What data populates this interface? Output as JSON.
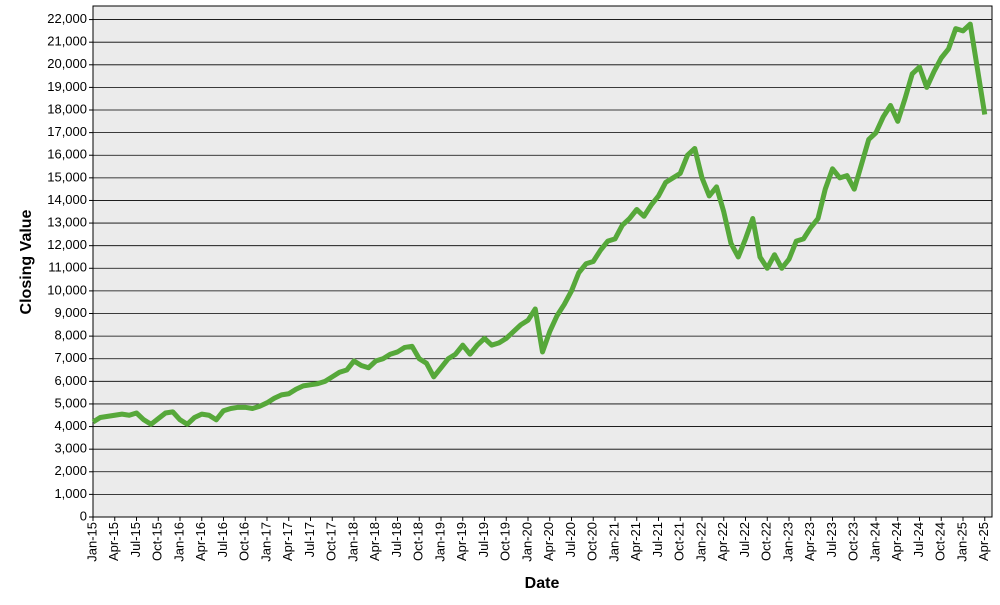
{
  "chart_data": {
    "type": "line",
    "x_label": "Date",
    "y_label": "Closing Value",
    "color": "#56a83a",
    "grid": true,
    "xlim": [
      "2015-01",
      "2025-05"
    ],
    "ylim": [
      0,
      22600
    ],
    "yticks": [
      0,
      {
        "value": 1000,
        "label": "1,000"
      },
      {
        "value": 2000,
        "label": "2,000"
      },
      {
        "value": 3000,
        "label": "3,000"
      },
      {
        "value": 4000,
        "label": "4,000"
      },
      {
        "value": 5000,
        "label": "5,000"
      },
      {
        "value": 6000,
        "label": "6,000"
      },
      {
        "value": 7000,
        "label": "7,000"
      },
      {
        "value": 8000,
        "label": "8,000"
      },
      {
        "value": 9000,
        "label": "9,000"
      },
      {
        "value": 10000,
        "label": "10,000"
      },
      {
        "value": 11000,
        "label": "11,000"
      },
      {
        "value": 12000,
        "label": "12,000"
      },
      {
        "value": 13000,
        "label": "13,000"
      },
      {
        "value": 14000,
        "label": "14,000"
      },
      {
        "value": 15000,
        "label": "15,000"
      },
      {
        "value": 16000,
        "label": "16,000"
      },
      {
        "value": 17000,
        "label": "17,000"
      },
      {
        "value": 18000,
        "label": "18,000"
      },
      {
        "value": 19000,
        "label": "19,000"
      },
      {
        "value": 20000,
        "label": "20,000"
      },
      {
        "value": 21000,
        "label": "21,000"
      },
      {
        "value": 22000,
        "label": "22,000"
      }
    ],
    "xticks": [
      {
        "value": "2015-01",
        "label": "Jan-15"
      },
      {
        "value": "2015-04",
        "label": "Apr-15"
      },
      {
        "value": "2015-07",
        "label": "Jul-15"
      },
      {
        "value": "2015-10",
        "label": "Oct-15"
      },
      {
        "value": "2016-01",
        "label": "Jan-16"
      },
      {
        "value": "2016-04",
        "label": "Apr-16"
      },
      {
        "value": "2016-07",
        "label": "Jul-16"
      },
      {
        "value": "2016-10",
        "label": "Oct-16"
      },
      {
        "value": "2017-01",
        "label": "Jan-17"
      },
      {
        "value": "2017-04",
        "label": "Apr-17"
      },
      {
        "value": "2017-07",
        "label": "Jul-17"
      },
      {
        "value": "2017-10",
        "label": "Oct-17"
      },
      {
        "value": "2018-01",
        "label": "Jan-18"
      },
      {
        "value": "2018-04",
        "label": "Apr-18"
      },
      {
        "value": "2018-07",
        "label": "Jul-18"
      },
      {
        "value": "2018-10",
        "label": "Oct-18"
      },
      {
        "value": "2019-01",
        "label": "Jan-19"
      },
      {
        "value": "2019-04",
        "label": "Apr-19"
      },
      {
        "value": "2019-07",
        "label": "Jul-19"
      },
      {
        "value": "2019-10",
        "label": "Oct-19"
      },
      {
        "value": "2020-01",
        "label": "Jan-20"
      },
      {
        "value": "2020-04",
        "label": "Apr-20"
      },
      {
        "value": "2020-07",
        "label": "Jul-20"
      },
      {
        "value": "2020-10",
        "label": "Oct-20"
      },
      {
        "value": "2021-01",
        "label": "Jan-21"
      },
      {
        "value": "2021-04",
        "label": "Apr-21"
      },
      {
        "value": "2021-07",
        "label": "Jul-21"
      },
      {
        "value": "2021-10",
        "label": "Oct-21"
      },
      {
        "value": "2022-01",
        "label": "Jan-22"
      },
      {
        "value": "2022-04",
        "label": "Apr-22"
      },
      {
        "value": "2022-07",
        "label": "Jul-22"
      },
      {
        "value": "2022-10",
        "label": "Oct-22"
      },
      {
        "value": "2023-01",
        "label": "Jan-23"
      },
      {
        "value": "2023-04",
        "label": "Apr-23"
      },
      {
        "value": "2023-07",
        "label": "Jul-23"
      },
      {
        "value": "2023-10",
        "label": "Oct-23"
      },
      {
        "value": "2024-01",
        "label": "Jan-24"
      },
      {
        "value": "2024-04",
        "label": "Apr-24"
      },
      {
        "value": "2024-07",
        "label": "Jul-24"
      },
      {
        "value": "2024-10",
        "label": "Oct-24"
      },
      {
        "value": "2025-01",
        "label": "Jan-25"
      },
      {
        "value": "2025-04",
        "label": "Apr-25"
      }
    ],
    "x": [
      "2015-01",
      "2015-02",
      "2015-03",
      "2015-04",
      "2015-05",
      "2015-06",
      "2015-07",
      "2015-08",
      "2015-09",
      "2015-10",
      "2015-11",
      "2015-12",
      "2016-01",
      "2016-02",
      "2016-03",
      "2016-04",
      "2016-05",
      "2016-06",
      "2016-07",
      "2016-08",
      "2016-09",
      "2016-10",
      "2016-11",
      "2016-12",
      "2017-01",
      "2017-02",
      "2017-03",
      "2017-04",
      "2017-05",
      "2017-06",
      "2017-07",
      "2017-08",
      "2017-09",
      "2017-10",
      "2017-11",
      "2017-12",
      "2018-01",
      "2018-02",
      "2018-03",
      "2018-04",
      "2018-05",
      "2018-06",
      "2018-07",
      "2018-08",
      "2018-09",
      "2018-10",
      "2018-11",
      "2018-12",
      "2019-01",
      "2019-02",
      "2019-03",
      "2019-04",
      "2019-05",
      "2019-06",
      "2019-07",
      "2019-08",
      "2019-09",
      "2019-10",
      "2019-11",
      "2019-12",
      "2020-01",
      "2020-02",
      "2020-03",
      "2020-04",
      "2020-05",
      "2020-06",
      "2020-07",
      "2020-08",
      "2020-09",
      "2020-10",
      "2020-11",
      "2020-12",
      "2021-01",
      "2021-02",
      "2021-03",
      "2021-04",
      "2021-05",
      "2021-06",
      "2021-07",
      "2021-08",
      "2021-09",
      "2021-10",
      "2021-11",
      "2021-12",
      "2022-01",
      "2022-02",
      "2022-03",
      "2022-04",
      "2022-05",
      "2022-06",
      "2022-07",
      "2022-08",
      "2022-09",
      "2022-10",
      "2022-11",
      "2022-12",
      "2023-01",
      "2023-02",
      "2023-03",
      "2023-04",
      "2023-05",
      "2023-06",
      "2023-07",
      "2023-08",
      "2023-09",
      "2023-10",
      "2023-11",
      "2023-12",
      "2024-01",
      "2024-02",
      "2024-03",
      "2024-04",
      "2024-05",
      "2024-06",
      "2024-07",
      "2024-08",
      "2024-09",
      "2024-10",
      "2024-11",
      "2024-12",
      "2025-01",
      "2025-02",
      "2025-03",
      "2025-04"
    ],
    "values": [
      4200,
      4400,
      4450,
      4500,
      4550,
      4500,
      4600,
      4300,
      4100,
      4350,
      4600,
      4650,
      4300,
      4100,
      4400,
      4550,
      4500,
      4300,
      4700,
      4800,
      4850,
      4850,
      4800,
      4900,
      5050,
      5250,
      5400,
      5450,
      5650,
      5800,
      5850,
      5900,
      6000,
      6200,
      6400,
      6500,
      6900,
      6700,
      6600,
      6900,
      7000,
      7200,
      7300,
      7500,
      7550,
      7000,
      6800,
      6200,
      6600,
      7000,
      7200,
      7600,
      7200,
      7600,
      7900,
      7600,
      7700,
      7900,
      8200,
      8500,
      8700,
      9200,
      7300,
      8200,
      8900,
      9400,
      10000,
      10800,
      11200,
      11300,
      11800,
      12200,
      12300,
      12900,
      13200,
      13600,
      13300,
      13800,
      14200,
      14800,
      15000,
      15200,
      16000,
      16300,
      15000,
      14200,
      14600,
      13500,
      12100,
      11500,
      12300,
      13200,
      11500,
      11000,
      11600,
      11000,
      11400,
      12200,
      12300,
      12800,
      13200,
      14500,
      15400,
      15000,
      15100,
      14500,
      15600,
      16700,
      17000,
      17700,
      18200,
      17500,
      18500,
      19600,
      19900,
      19000,
      19700,
      20300,
      20700,
      21600,
      21500,
      21800,
      19800,
      17800
    ]
  }
}
